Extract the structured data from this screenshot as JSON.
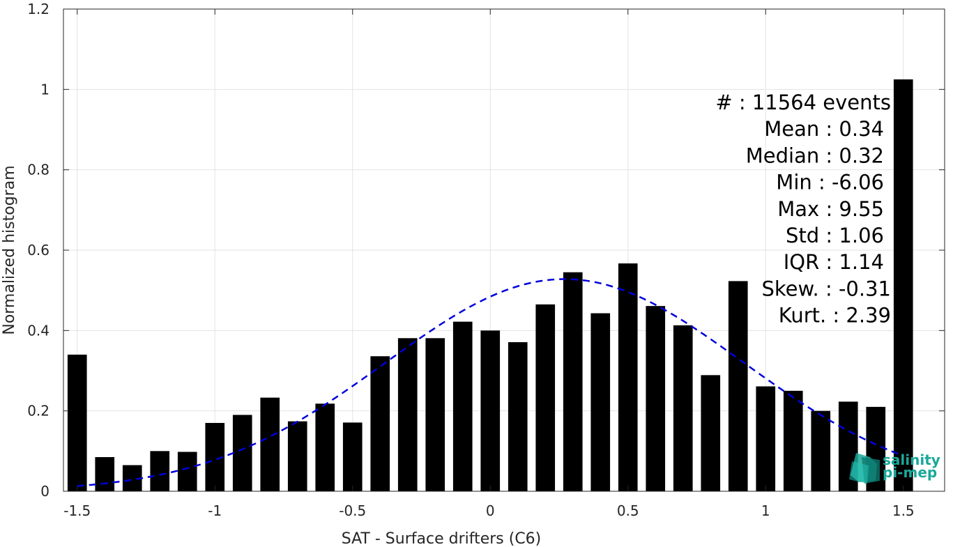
{
  "chart_data": {
    "type": "bar",
    "xlabel": "SAT - Surface drifters (C6)",
    "ylabel": "Normalized histogram",
    "xlim": [
      -1.55,
      1.65
    ],
    "ylim": [
      0,
      1.2
    ],
    "xticks": [
      -1.5,
      -1,
      -0.5,
      0,
      0.5,
      1,
      1.5
    ],
    "xtick_labels": [
      "-1.5",
      "-1",
      "-0.5",
      "0",
      "0.5",
      "1",
      "1.5"
    ],
    "yticks": [
      0,
      0.2,
      0.4,
      0.6,
      0.8,
      1,
      1.2
    ],
    "ytick_labels": [
      "0",
      "0.2",
      "0.4",
      "0.6",
      "0.8",
      "1",
      "1.2"
    ],
    "grid": true,
    "bar_width": 0.07,
    "bar_color": "#000000",
    "x": [
      -1.5,
      -1.4,
      -1.3,
      -1.2,
      -1.1,
      -1.0,
      -0.9,
      -0.8,
      -0.7,
      -0.6,
      -0.5,
      -0.4,
      -0.3,
      -0.2,
      -0.1,
      0.0,
      0.1,
      0.2,
      0.3,
      0.4,
      0.5,
      0.6,
      0.7,
      0.8,
      0.9,
      1.0,
      1.1,
      1.2,
      1.3,
      1.4,
      1.5
    ],
    "values": [
      0.34,
      0.085,
      0.065,
      0.1,
      0.098,
      0.17,
      0.19,
      0.233,
      0.174,
      0.218,
      0.171,
      0.336,
      0.381,
      0.381,
      0.422,
      0.4,
      0.371,
      0.465,
      0.545,
      0.443,
      0.567,
      0.461,
      0.413,
      0.289,
      0.523,
      0.261,
      0.25,
      0.2,
      0.223,
      0.21,
      1.025
    ],
    "fit_curve": {
      "style": "dashed",
      "color": "#0000dd",
      "mean": 0.27,
      "sigma": 0.65,
      "peak": 0.528,
      "x_range": [
        -1.5,
        1.5
      ]
    },
    "annotations": [
      {
        "label": "#",
        "value": ": 11564 events"
      },
      {
        "label": "Mean",
        "value": ": 0.34"
      },
      {
        "label": "Median",
        "value": ": 0.32"
      },
      {
        "label": "Min",
        "value": ": -6.06"
      },
      {
        "label": "Max",
        "value": ": 9.55"
      },
      {
        "label": "Std",
        "value": ": 1.06"
      },
      {
        "label": "IQR",
        "value": ": 1.14"
      },
      {
        "label": "Skew.",
        "value": ": -0.31"
      },
      {
        "label": "Kurt.",
        "value": ": 2.39"
      }
    ]
  },
  "logo": {
    "line1": "salinity",
    "line2": "pi-mep",
    "icon": "cube-logo-icon",
    "color": "#1aa89a"
  }
}
